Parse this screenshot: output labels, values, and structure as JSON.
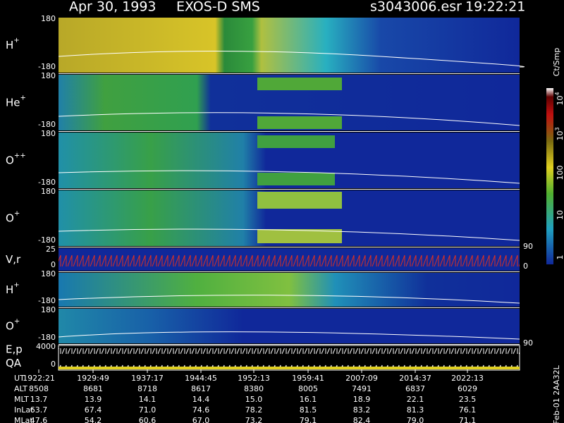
{
  "header": {
    "date": "Apr 30, 1993",
    "instrument": "EXOS-D SMS",
    "file": "s3043006.esr",
    "time": "19:22:21"
  },
  "panels": [
    {
      "label": "H",
      "sup": "+",
      "ticks": [
        "180",
        "-180"
      ]
    },
    {
      "label": "He",
      "sup": "+",
      "ticks": [
        "180",
        "-180"
      ]
    },
    {
      "label": "O",
      "sup": "++",
      "ticks": [
        "180",
        "-180"
      ]
    },
    {
      "label": "O",
      "sup": "+",
      "ticks": [
        "180",
        "-180"
      ]
    },
    {
      "label": "V,r",
      "sup": null,
      "ticks": [
        "25",
        "0"
      ],
      "right_ticks": [
        "90",
        "0"
      ]
    },
    {
      "label": "H",
      "sup": "+",
      "ticks": [
        "180",
        "-180"
      ]
    },
    {
      "label": "O",
      "sup": "+",
      "ticks": [
        "180",
        "-180"
      ],
      "right_ticks": [
        "90"
      ]
    },
    {
      "label": "E,p",
      "label2": "QA",
      "sup": null,
      "ticks": [
        "4000",
        "0"
      ]
    }
  ],
  "colorbar": {
    "unit": "Ct/Smp",
    "ticks": [
      {
        "base": "10",
        "exp": "4"
      },
      {
        "base": "10",
        "exp": "3"
      },
      {
        "base": "100"
      },
      {
        "base": "10"
      },
      {
        "base": "1"
      }
    ]
  },
  "table": {
    "rows": [
      {
        "label": "UT",
        "values": [
          "1922:21",
          "1929:49",
          "1937:17",
          "1944:45",
          "1952:13",
          "1959:41",
          "2007:09",
          "2014:37",
          "2022:13"
        ]
      },
      {
        "label": "ALT",
        "values": [
          "8508",
          "8681",
          "8718",
          "8617",
          "8380",
          "8005",
          "7491",
          "6837",
          "6029"
        ]
      },
      {
        "label": "MLT",
        "values": [
          "13.7",
          "13.9",
          "14.1",
          "14.4",
          "15.0",
          "16.1",
          "18.9",
          "22.1",
          "23.5"
        ]
      },
      {
        "label": "InLat",
        "values": [
          "63.7",
          "67.4",
          "71.0",
          "74.6",
          "78.2",
          "81.5",
          "83.2",
          "81.3",
          "76.1"
        ]
      },
      {
        "label": "MLat",
        "values": [
          "47.6",
          "54.2",
          "60.6",
          "67.0",
          "73.2",
          "79.1",
          "82.4",
          "79.0",
          "71.1"
        ]
      }
    ]
  },
  "footer_code": "Feb-01 2AA32L"
}
